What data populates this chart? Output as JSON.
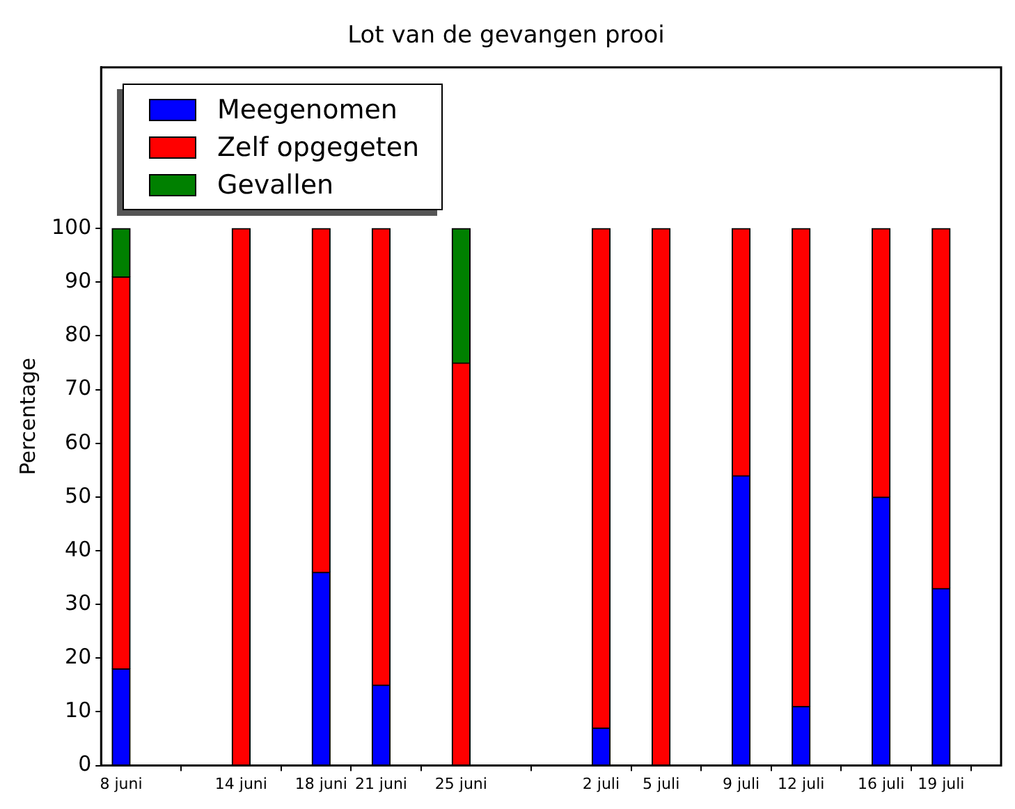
{
  "chart_data": {
    "type": "bar",
    "title": "Lot van de gevangen prooi",
    "ylabel": "Percentage",
    "x": [
      "--06-08",
      "--06-14",
      "--06-18",
      "--06-21",
      "--06-25",
      "--07-02",
      "--07-05",
      "--07-09",
      "--07-12",
      "--07-16",
      "--07-19"
    ],
    "xlim": [
      "--06-07",
      "--07-22"
    ],
    "xticks": [
      {
        "value": "--06-08",
        "label": "8 juni"
      },
      {
        "value": "--06-14",
        "label": "14 juni"
      },
      {
        "value": "--06-18",
        "label": "18 juni"
      },
      {
        "value": "--06-21",
        "label": "21 juni"
      },
      {
        "value": "--06-25",
        "label": "25 juni"
      },
      {
        "value": "--07-02",
        "label": "2 juli"
      },
      {
        "value": "--07-05",
        "label": "5 juli"
      },
      {
        "value": "--07-09",
        "label": "9 juli"
      },
      {
        "value": "--07-12",
        "label": "12 juli"
      },
      {
        "value": "--07-16",
        "label": "16 juli"
      },
      {
        "value": "--07-19",
        "label": "19 juli"
      }
    ],
    "ylim": [
      0,
      130
    ],
    "yticks": [
      0,
      10,
      20,
      30,
      40,
      50,
      60,
      70,
      80,
      90,
      100
    ],
    "stacked": true,
    "grid": false,
    "legend": "top left",
    "series": [
      {
        "name": "Meegenomen",
        "color": "#0000ff",
        "values": [
          18,
          0,
          36,
          15,
          0,
          7,
          0,
          54,
          11,
          50,
          33
        ]
      },
      {
        "name": "Zelf opgegeten",
        "color": "#ff0000",
        "values": [
          73,
          100,
          64,
          85,
          75,
          93,
          100,
          46,
          89,
          50,
          67
        ]
      },
      {
        "name": "Gevallen",
        "color": "#008000",
        "values": [
          9,
          0,
          0,
          0,
          25,
          0,
          0,
          0,
          0,
          0,
          0
        ]
      }
    ]
  }
}
